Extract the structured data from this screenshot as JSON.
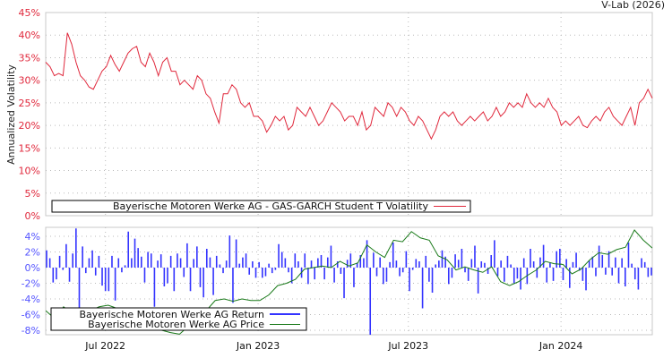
{
  "header": {
    "credit": "V-Lab (2026)"
  },
  "colors": {
    "volatility": "#e0283c",
    "returns": "#3333ff",
    "price": "#1a7a1a",
    "vol_ticks": "#e0283c",
    "ret_ticks": "#5555ff",
    "grid": "#bbbbbb",
    "frame": "#c8c8c8"
  },
  "chart_data": [
    {
      "type": "line",
      "title": "",
      "ylabel": "Annualized Volatility",
      "xlabel": "",
      "ylim": [
        0,
        45
      ],
      "yticks": [
        "0%",
        "5%",
        "10%",
        "15%",
        "20%",
        "25%",
        "30%",
        "35%",
        "40%",
        "45%"
      ],
      "ytick_values": [
        0,
        5,
        10,
        15,
        20,
        25,
        30,
        35,
        40,
        45
      ],
      "xticks": [
        "Jul 2022",
        "Jan 2023",
        "Jul 2023",
        "Jan 2024"
      ],
      "xtick_dates": [
        "2022-07-01",
        "2023-01-01",
        "2023-07-01",
        "2024-01-01"
      ],
      "x_range": [
        "2022-04-20",
        "2024-04-20"
      ],
      "grid": true,
      "legend": {
        "position": "bottom-left",
        "entries": [
          "Bayerische Motoren Werke AG - GAS-GARCH Student T Volatility"
        ]
      },
      "series": [
        {
          "name": "Bayerische Motoren Werke AG - GAS-GARCH Student T Volatility",
          "unit": "%",
          "values": [
            34,
            33,
            31,
            31.5,
            31,
            40.5,
            38,
            34,
            31,
            30,
            28.5,
            28,
            30,
            32,
            33,
            35.5,
            33.5,
            32,
            34,
            36,
            37,
            37.5,
            34,
            33,
            36,
            34,
            31,
            34,
            35,
            32,
            32,
            29,
            30,
            29,
            28,
            31,
            30,
            27,
            26,
            23,
            20.5,
            27,
            27,
            29,
            28,
            25,
            24,
            25,
            22,
            22,
            21,
            18.5,
            20,
            22,
            21,
            22,
            19,
            20,
            24,
            23,
            22,
            24,
            22,
            20,
            21,
            23,
            25,
            24,
            23,
            21,
            22,
            22,
            20,
            23,
            19,
            20,
            24,
            23,
            22,
            25,
            24,
            22,
            24,
            23,
            21,
            20,
            22,
            21,
            19,
            17,
            19,
            22,
            23,
            22,
            23,
            21,
            20,
            21,
            22,
            21,
            22,
            23,
            21,
            22,
            24,
            22,
            23,
            25,
            24,
            25,
            24,
            27,
            25,
            24,
            25,
            24,
            26,
            24,
            23,
            20,
            21,
            20,
            21,
            22,
            20,
            19.5,
            21,
            22,
            21,
            23,
            24,
            22,
            21,
            20,
            22,
            24,
            20,
            25,
            26,
            28,
            26
          ]
        }
      ]
    },
    {
      "type": "bar",
      "ylim": [
        -8.6,
        5
      ],
      "yticks": [
        "-8%",
        "-6%",
        "-4%",
        "-2%",
        "0%",
        "2%",
        "4%"
      ],
      "ytick_values": [
        -8,
        -6,
        -4,
        -2,
        0,
        2,
        4
      ],
      "xticks": [
        "Jul 2022",
        "Jan 2023",
        "Jul 2023",
        "Jan 2024"
      ],
      "x_range": [
        "2022-04-20",
        "2024-04-20"
      ],
      "grid": true,
      "legend": {
        "position": "bottom-left",
        "entries": [
          "Bayerische Motoren Werke AG Return",
          "Bayerische Motoren Werke AG Price"
        ]
      },
      "series": [
        {
          "name": "Bayerische Motoren Werke AG Return",
          "unit": "%",
          "values": [
            2.2,
            1.2,
            -1.9,
            -1.5,
            1.5,
            -0.3,
            3,
            -1.8,
            1.8,
            5,
            -8,
            2.7,
            -0.7,
            1.2,
            2.2,
            -1,
            1.5,
            -2.3,
            -3,
            -3,
            1.5,
            -4.2,
            1.2,
            -0.6,
            0.3,
            4.6,
            1.2,
            3.7,
            2.5,
            1.4,
            -1.9,
            2,
            1.8,
            -5,
            0.9,
            1.7,
            -2.4,
            -2,
            1.5,
            -3,
            1.8,
            1.2,
            -1.2,
            3.1,
            -3,
            1.1,
            2.7,
            -2.5,
            -3.8,
            2.4,
            1.3,
            -3.5,
            1.5,
            0.4,
            -0.7,
            0.9,
            4.1,
            -4.5,
            3.6,
            0.5,
            1.3,
            1.8,
            -0.9,
            0.8,
            -1.3,
            0.7,
            -1.3,
            -1.1,
            0.5,
            -0.7,
            -0.3,
            3,
            2,
            1.2,
            -0.6,
            -2,
            1.8,
            0.8,
            -1.3,
            1.8,
            -2.1,
            0.9,
            -1.5,
            1.2,
            1.6,
            -1.5,
            1.3,
            2.8,
            -1.9,
            0.8,
            -0.8,
            -3.9,
            1,
            1.8,
            -2.5,
            0.6,
            1.6,
            1.2,
            3.5,
            -8.6,
            1.9,
            -1.1,
            1.3,
            -2.1,
            -1.8,
            0.7,
            3.2,
            0.9,
            -1.1,
            -0.6,
            2.1,
            -3,
            -0.3,
            1.1,
            0.8,
            -5.2,
            1.5,
            -1.8,
            -3.2,
            0.4,
            0.9,
            2.2,
            1.4,
            -2.1,
            -1.3,
            1.7,
            1,
            2.4,
            -0.6,
            -1.7,
            1.1,
            2.8,
            -3.3,
            0.8,
            0.6,
            -0.8,
            1.6,
            3.5,
            -1.1,
            0.9,
            -1.8,
            1.5,
            0.4,
            -2,
            -1.4,
            -2.8,
            1.2,
            -2.1,
            2.4,
            0.8,
            -1.3,
            1.3,
            2.9,
            -1.9,
            0.6,
            -1.7,
            2.1,
            2.4,
            -1.6,
            1.1,
            -2.6,
            0.7,
            1.9,
            -0.4,
            -1.7,
            -2.9,
            0.9,
            1.4,
            -1.1,
            2.8,
            1.6,
            -0.9,
            2.1,
            -1,
            1.3,
            -2,
            1.2,
            -2.4,
            3.2,
            0.5,
            -1.5,
            -2.8,
            1.2,
            0.7,
            -1.2,
            -1
          ]
        },
        {
          "name": "Bayerische Motoren Werke AG Price",
          "unit": "scaled to return axis",
          "values": [
            -5.5,
            -6.5,
            -5,
            -5.8,
            -6.2,
            -5.5,
            -5,
            -4.8,
            -5.2,
            -6.5,
            -7.2,
            -7.5,
            -7.8,
            -8,
            -8.3,
            -8.5,
            -7.5,
            -6.3,
            -5.5,
            -4.2,
            -4,
            -4.3,
            -4,
            -4.2,
            -4.2,
            -3.5,
            -2.3,
            -2,
            -1.5,
            -0.2,
            0,
            0.2,
            0,
            0.8,
            0.2,
            0.6,
            2.9,
            2,
            1.3,
            3.5,
            3.3,
            4.6,
            3.8,
            3.5,
            1.5,
            1,
            -0.3,
            0.1,
            -0.3,
            -0.6,
            0.1,
            -1.8,
            -2.3,
            -1.8,
            -1,
            -0.3,
            0.8,
            0.5,
            0.4,
            -0.8,
            -0.2,
            1,
            1.9,
            1.7,
            2.3,
            2.6,
            4.8,
            3.5,
            2.5
          ]
        }
      ]
    }
  ]
}
